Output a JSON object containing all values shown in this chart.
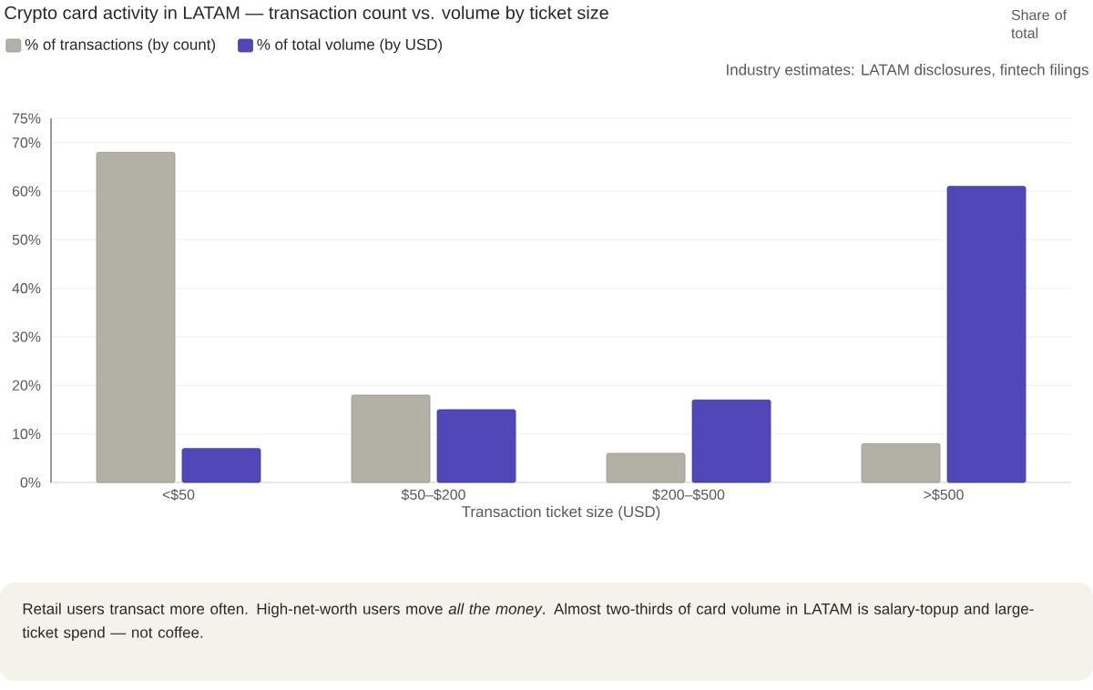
{
  "chart_data": {
    "type": "bar",
    "title": "Crypto card activity in LATAM — transaction count vs. volume by ticket size",
    "xlabel": "Transaction ticket size (USD)",
    "categories": [
      "<$50",
      "$50–$200",
      "$200–$500",
      ">$500"
    ],
    "series": [
      {
        "name": "% of transactions (by count)",
        "color": "#b3b0a6",
        "values": [
          68,
          18,
          6,
          8
        ]
      },
      {
        "name": "% of total volume (by USD)",
        "color": "#5048b8",
        "values": [
          7,
          15,
          17,
          61
        ]
      }
    ],
    "ylim": [
      0,
      75
    ],
    "yticks": [
      {
        "value": 0,
        "label": "0%"
      },
      {
        "value": 10,
        "label": "10%"
      },
      {
        "value": 20,
        "label": "20%"
      },
      {
        "value": 30,
        "label": "30%"
      },
      {
        "value": 40,
        "label": "40%"
      },
      {
        "value": 50,
        "label": "50%"
      },
      {
        "value": 60,
        "label": "60%"
      },
      {
        "value": 70,
        "label": "70%"
      },
      {
        "value": 75,
        "label": "75%"
      }
    ],
    "grid": "y",
    "legend": "top left",
    "annotations": [
      "Industry estimates: LATAM disclosures, fintech filings",
      "Retail users transact more often. High-net-worth users move *all the money*. Almost two-thirds of card volume in LATAM is salary-topup and large-ticket spend — not coffee.",
      "Share of total"
    ]
  }
}
